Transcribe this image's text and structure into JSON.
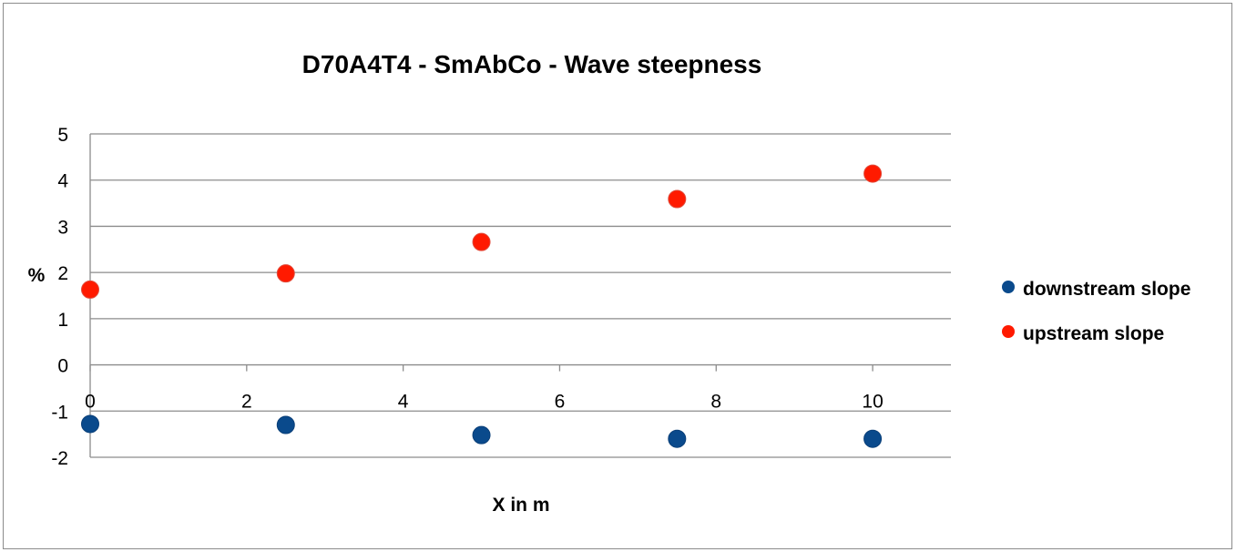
{
  "chart_data": {
    "type": "scatter",
    "title": "D70A4T4  - SmAbCo - Wave steepness",
    "xlabel": "X in m",
    "ylabel": "%",
    "xlim": [
      0,
      11
    ],
    "ylim": [
      -2,
      5
    ],
    "xticks": [
      0,
      2,
      4,
      6,
      8,
      10
    ],
    "yticks": [
      5,
      4,
      3,
      2,
      1,
      0,
      -1,
      -2
    ],
    "grid": "horizontal",
    "legend_position": "right",
    "series": [
      {
        "name": "downstream slope",
        "color": "#0a4a8c",
        "x": [
          0,
          2.5,
          5,
          7.5,
          10
        ],
        "y": [
          -1.28,
          -1.3,
          -1.52,
          -1.6,
          -1.6
        ]
      },
      {
        "name": "upstream slope",
        "color": "#ff1a00",
        "x": [
          0,
          2.5,
          5,
          7.5,
          10
        ],
        "y": [
          1.63,
          1.98,
          2.66,
          3.59,
          4.14
        ]
      }
    ]
  }
}
